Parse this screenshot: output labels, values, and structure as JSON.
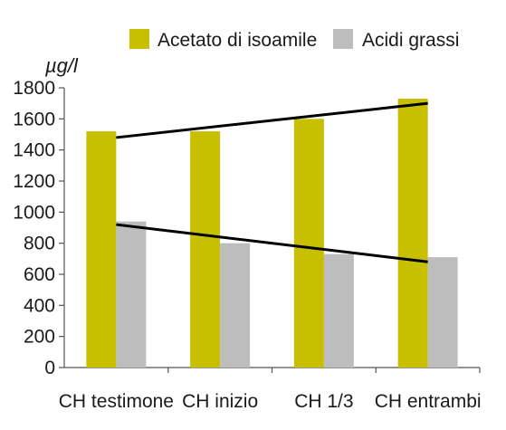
{
  "chart_data": {
    "type": "bar",
    "title": "",
    "xlabel": "",
    "ylabel": "µg/l",
    "ylim": [
      0,
      1800
    ],
    "yticks": [
      0,
      200,
      400,
      600,
      800,
      1000,
      1200,
      1400,
      1600,
      1800
    ],
    "grid": false,
    "legend": "top-right",
    "categories": [
      "CH testimone",
      "CH inizio",
      "CH 1/3",
      "CH entrambi"
    ],
    "series": [
      {
        "name": "Acetato di isoamile",
        "color": "#c8bf00",
        "values": [
          1520,
          1520,
          1600,
          1730
        ]
      },
      {
        "name": "Acidi grassi",
        "color": "#bdbdbd",
        "values": [
          940,
          800,
          730,
          710
        ]
      }
    ],
    "trendlines": [
      {
        "series": "Acetato di isoamile",
        "color": "#000000",
        "start": 1480,
        "end": 1700
      },
      {
        "series": "Acidi grassi",
        "color": "#000000",
        "start": 920,
        "end": 680
      }
    ]
  }
}
